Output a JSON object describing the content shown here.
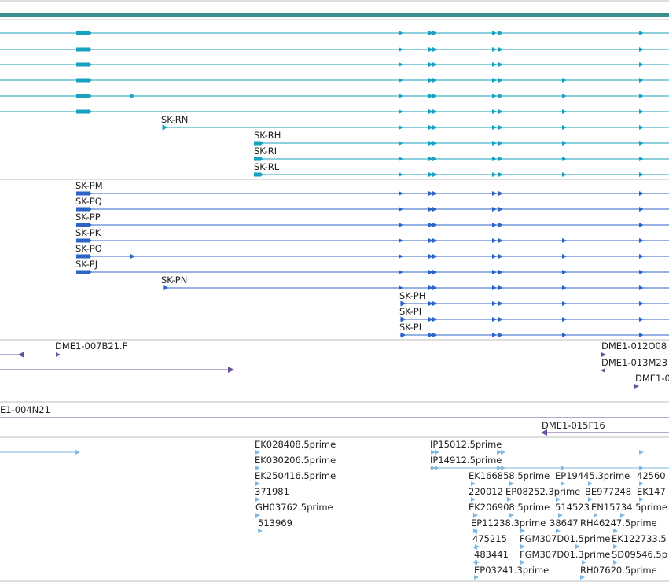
{
  "colors": {
    "top_band": "#3a8f8f",
    "cdna_track": "#17a2bf",
    "transcript_track": "#2d64c8",
    "bac_track": "#6a4ea0",
    "est_track": "#7fb8e0",
    "separator": "#bdbdbd",
    "label": "#222222"
  },
  "tracks": {
    "cdna": {
      "icon": "right-arrow",
      "labels": [
        "SK-RN",
        "SK-RH",
        "SK-RI",
        "SK-RL"
      ]
    },
    "transcripts": {
      "icon": "right-arrow",
      "labels": [
        "SK-PM",
        "SK-PQ",
        "SK-PP",
        "SK-PK",
        "SK-PO",
        "SK-PJ",
        "SK-PN",
        "SK-PH",
        "SK-PI",
        "SK-PL"
      ]
    },
    "bac_ends": {
      "labels": [
        "DME1-007B21.F",
        "DME1-012O08",
        "DME1-013M23",
        "DME1-0"
      ]
    },
    "bac_clones": {
      "labels": [
        "E1-004N21",
        "DME1-015F16"
      ]
    },
    "est": {
      "labels": [
        "EK028408.5prime",
        "EK030206.5prime",
        "EK250416.5prime",
        "371981",
        "GH03762.5prime",
        "513969",
        "IP15012.5prime",
        "IP14912.5prime",
        "EK166858.5prime",
        "EP19445.3prime",
        "42560",
        "220012",
        "EP08252.3prime",
        "BE977248",
        "EK147",
        "EK206908.5prime",
        "514523",
        "EN15734.5prime",
        "EP11238.3prime",
        "38647",
        "RH46247.5prime",
        "475215",
        "FGM307D01.5prime",
        "EK122733.5",
        "483441",
        "FGM307D01.3prime",
        "SD09546.5p",
        "EP03241.3prime",
        "RH07620.5prime"
      ]
    }
  }
}
